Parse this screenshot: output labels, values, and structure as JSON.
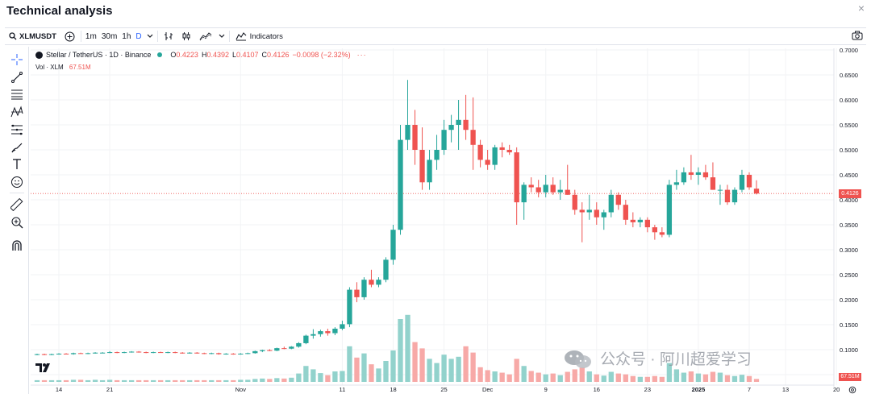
{
  "header": {
    "title": "Technical analysis",
    "close": "×"
  },
  "toolbar": {
    "symbol": "XLMUSDT",
    "intervals": [
      "1m",
      "30m",
      "1h",
      "D"
    ],
    "active_interval": "D",
    "indicators": "Indicators"
  },
  "legend": {
    "name": "Stellar / TetherUS · 1D · Binance",
    "o_label": "O",
    "o": "0.4223",
    "h_label": "H",
    "h": "0.4392",
    "l_label": "L",
    "l": "0.4107",
    "c_label": "C",
    "c": "0.4126",
    "change": "−0.0098 (−2.32%)",
    "vol_label": "Vol · XLM",
    "vol": "67.51M"
  },
  "last_price_tag": "0.4126",
  "last_volume_tag": "67.51M",
  "watermark": "公众号 · 阿川超爱学习",
  "colors": {
    "up": "#26a69a",
    "down": "#ef5350",
    "vol_up": "#92d2cc",
    "vol_down": "#f7a9a7",
    "accent": "#2962ff"
  },
  "icons": [
    "search-icon",
    "plus-circle-icon",
    "chevron-down-icon",
    "bar-style-icon",
    "candle-style-icon",
    "area-style-icon",
    "indicators-icon",
    "camera-icon",
    "crosshair-icon",
    "trendline-icon",
    "fib-icon",
    "pattern-icon",
    "projection-icon",
    "brush-icon",
    "text-icon",
    "emoji-icon",
    "ruler-icon",
    "zoom-icon",
    "magnet-icon"
  ],
  "chart_data": {
    "type": "candlestick",
    "y_ticks": [
      "0.7000",
      "0.6500",
      "0.6000",
      "0.5500",
      "0.5000",
      "0.4500",
      "0.4000",
      "0.3500",
      "0.3000",
      "0.2500",
      "0.2000",
      "0.1500",
      "0.1000",
      "0.0500"
    ],
    "x_ticks": [
      "14",
      "21",
      "Nov",
      "11",
      "18",
      "25",
      "Dec",
      "9",
      "16",
      "23",
      "2025",
      "7",
      "13",
      "20"
    ],
    "ylim": [
      0.05,
      0.7
    ],
    "candles": [
      {
        "o": 0.09,
        "h": 0.092,
        "l": 0.089,
        "c": 0.091,
        "v": 4
      },
      {
        "o": 0.091,
        "h": 0.092,
        "l": 0.089,
        "c": 0.09,
        "v": 4
      },
      {
        "o": 0.09,
        "h": 0.092,
        "l": 0.089,
        "c": 0.091,
        "v": 4
      },
      {
        "o": 0.091,
        "h": 0.093,
        "l": 0.09,
        "c": 0.092,
        "v": 4
      },
      {
        "o": 0.092,
        "h": 0.093,
        "l": 0.091,
        "c": 0.091,
        "v": 4
      },
      {
        "o": 0.091,
        "h": 0.094,
        "l": 0.09,
        "c": 0.093,
        "v": 5
      },
      {
        "o": 0.093,
        "h": 0.094,
        "l": 0.092,
        "c": 0.092,
        "v": 5
      },
      {
        "o": 0.092,
        "h": 0.094,
        "l": 0.091,
        "c": 0.093,
        "v": 4
      },
      {
        "o": 0.093,
        "h": 0.095,
        "l": 0.092,
        "c": 0.094,
        "v": 5
      },
      {
        "o": 0.094,
        "h": 0.095,
        "l": 0.093,
        "c": 0.094,
        "v": 4
      },
      {
        "o": 0.094,
        "h": 0.097,
        "l": 0.093,
        "c": 0.095,
        "v": 5
      },
      {
        "o": 0.095,
        "h": 0.096,
        "l": 0.093,
        "c": 0.094,
        "v": 4
      },
      {
        "o": 0.094,
        "h": 0.096,
        "l": 0.093,
        "c": 0.095,
        "v": 4
      },
      {
        "o": 0.095,
        "h": 0.097,
        "l": 0.094,
        "c": 0.096,
        "v": 4
      },
      {
        "o": 0.096,
        "h": 0.097,
        "l": 0.094,
        "c": 0.095,
        "v": 4
      },
      {
        "o": 0.095,
        "h": 0.096,
        "l": 0.093,
        "c": 0.094,
        "v": 4
      },
      {
        "o": 0.094,
        "h": 0.096,
        "l": 0.093,
        "c": 0.095,
        "v": 4
      },
      {
        "o": 0.095,
        "h": 0.096,
        "l": 0.094,
        "c": 0.094,
        "v": 4
      },
      {
        "o": 0.094,
        "h": 0.096,
        "l": 0.093,
        "c": 0.095,
        "v": 4
      },
      {
        "o": 0.095,
        "h": 0.096,
        "l": 0.093,
        "c": 0.094,
        "v": 4
      },
      {
        "o": 0.094,
        "h": 0.095,
        "l": 0.092,
        "c": 0.093,
        "v": 4
      },
      {
        "o": 0.093,
        "h": 0.095,
        "l": 0.092,
        "c": 0.094,
        "v": 4
      },
      {
        "o": 0.094,
        "h": 0.095,
        "l": 0.092,
        "c": 0.093,
        "v": 4
      },
      {
        "o": 0.093,
        "h": 0.094,
        "l": 0.091,
        "c": 0.092,
        "v": 4
      },
      {
        "o": 0.092,
        "h": 0.094,
        "l": 0.091,
        "c": 0.093,
        "v": 4
      },
      {
        "o": 0.093,
        "h": 0.094,
        "l": 0.09,
        "c": 0.091,
        "v": 4
      },
      {
        "o": 0.091,
        "h": 0.093,
        "l": 0.09,
        "c": 0.092,
        "v": 4
      },
      {
        "o": 0.092,
        "h": 0.093,
        "l": 0.09,
        "c": 0.091,
        "v": 4
      },
      {
        "o": 0.091,
        "h": 0.093,
        "l": 0.09,
        "c": 0.092,
        "v": 5
      },
      {
        "o": 0.092,
        "h": 0.094,
        "l": 0.091,
        "c": 0.093,
        "v": 5
      },
      {
        "o": 0.093,
        "h": 0.098,
        "l": 0.092,
        "c": 0.097,
        "v": 7
      },
      {
        "o": 0.097,
        "h": 0.1,
        "l": 0.095,
        "c": 0.099,
        "v": 8
      },
      {
        "o": 0.099,
        "h": 0.101,
        "l": 0.097,
        "c": 0.098,
        "v": 7
      },
      {
        "o": 0.098,
        "h": 0.104,
        "l": 0.097,
        "c": 0.103,
        "v": 9
      },
      {
        "o": 0.103,
        "h": 0.106,
        "l": 0.101,
        "c": 0.102,
        "v": 8
      },
      {
        "o": 0.102,
        "h": 0.107,
        "l": 0.101,
        "c": 0.106,
        "v": 10
      },
      {
        "o": 0.106,
        "h": 0.115,
        "l": 0.104,
        "c": 0.113,
        "v": 20
      },
      {
        "o": 0.113,
        "h": 0.13,
        "l": 0.111,
        "c": 0.128,
        "v": 38
      },
      {
        "o": 0.128,
        "h": 0.141,
        "l": 0.122,
        "c": 0.131,
        "v": 30
      },
      {
        "o": 0.131,
        "h": 0.14,
        "l": 0.126,
        "c": 0.137,
        "v": 21
      },
      {
        "o": 0.137,
        "h": 0.142,
        "l": 0.128,
        "c": 0.133,
        "v": 16
      },
      {
        "o": 0.133,
        "h": 0.145,
        "l": 0.129,
        "c": 0.142,
        "v": 25
      },
      {
        "o": 0.142,
        "h": 0.158,
        "l": 0.139,
        "c": 0.151,
        "v": 26
      },
      {
        "o": 0.151,
        "h": 0.225,
        "l": 0.145,
        "c": 0.22,
        "v": 85
      },
      {
        "o": 0.22,
        "h": 0.235,
        "l": 0.195,
        "c": 0.205,
        "v": 58
      },
      {
        "o": 0.205,
        "h": 0.245,
        "l": 0.2,
        "c": 0.24,
        "v": 68
      },
      {
        "o": 0.24,
        "h": 0.26,
        "l": 0.225,
        "c": 0.23,
        "v": 42
      },
      {
        "o": 0.23,
        "h": 0.245,
        "l": 0.225,
        "c": 0.24,
        "v": 32
      },
      {
        "o": 0.24,
        "h": 0.285,
        "l": 0.235,
        "c": 0.28,
        "v": 50
      },
      {
        "o": 0.28,
        "h": 0.35,
        "l": 0.27,
        "c": 0.34,
        "v": 75
      },
      {
        "o": 0.34,
        "h": 0.55,
        "l": 0.33,
        "c": 0.52,
        "v": 150
      },
      {
        "o": 0.52,
        "h": 0.64,
        "l": 0.5,
        "c": 0.55,
        "v": 160
      },
      {
        "o": 0.55,
        "h": 0.58,
        "l": 0.47,
        "c": 0.5,
        "v": 95
      },
      {
        "o": 0.5,
        "h": 0.545,
        "l": 0.42,
        "c": 0.435,
        "v": 80
      },
      {
        "o": 0.435,
        "h": 0.5,
        "l": 0.42,
        "c": 0.48,
        "v": 55
      },
      {
        "o": 0.48,
        "h": 0.53,
        "l": 0.46,
        "c": 0.5,
        "v": 45
      },
      {
        "o": 0.5,
        "h": 0.56,
        "l": 0.49,
        "c": 0.54,
        "v": 65
      },
      {
        "o": 0.54,
        "h": 0.57,
        "l": 0.515,
        "c": 0.55,
        "v": 55
      },
      {
        "o": 0.55,
        "h": 0.6,
        "l": 0.5,
        "c": 0.56,
        "v": 60
      },
      {
        "o": 0.56,
        "h": 0.61,
        "l": 0.52,
        "c": 0.54,
        "v": 85
      },
      {
        "o": 0.54,
        "h": 0.605,
        "l": 0.46,
        "c": 0.51,
        "v": 70
      },
      {
        "o": 0.51,
        "h": 0.52,
        "l": 0.465,
        "c": 0.48,
        "v": 35
      },
      {
        "o": 0.48,
        "h": 0.5,
        "l": 0.46,
        "c": 0.47,
        "v": 28
      },
      {
        "o": 0.47,
        "h": 0.51,
        "l": 0.46,
        "c": 0.505,
        "v": 25
      },
      {
        "o": 0.505,
        "h": 0.515,
        "l": 0.485,
        "c": 0.5,
        "v": 22
      },
      {
        "o": 0.5,
        "h": 0.51,
        "l": 0.49,
        "c": 0.495,
        "v": 18
      },
      {
        "o": 0.495,
        "h": 0.505,
        "l": 0.35,
        "c": 0.395,
        "v": 55
      },
      {
        "o": 0.395,
        "h": 0.435,
        "l": 0.36,
        "c": 0.43,
        "v": 38
      },
      {
        "o": 0.43,
        "h": 0.445,
        "l": 0.415,
        "c": 0.425,
        "v": 26
      },
      {
        "o": 0.425,
        "h": 0.44,
        "l": 0.405,
        "c": 0.415,
        "v": 22
      },
      {
        "o": 0.415,
        "h": 0.45,
        "l": 0.405,
        "c": 0.43,
        "v": 18
      },
      {
        "o": 0.43,
        "h": 0.445,
        "l": 0.41,
        "c": 0.415,
        "v": 20
      },
      {
        "o": 0.415,
        "h": 0.44,
        "l": 0.4,
        "c": 0.42,
        "v": 16
      },
      {
        "o": 0.42,
        "h": 0.47,
        "l": 0.41,
        "c": 0.41,
        "v": 24
      },
      {
        "o": 0.41,
        "h": 0.42,
        "l": 0.37,
        "c": 0.38,
        "v": 30
      },
      {
        "o": 0.38,
        "h": 0.395,
        "l": 0.315,
        "c": 0.375,
        "v": 34
      },
      {
        "o": 0.375,
        "h": 0.41,
        "l": 0.36,
        "c": 0.38,
        "v": 25
      },
      {
        "o": 0.38,
        "h": 0.395,
        "l": 0.35,
        "c": 0.365,
        "v": 18
      },
      {
        "o": 0.365,
        "h": 0.38,
        "l": 0.34,
        "c": 0.375,
        "v": 15
      },
      {
        "o": 0.375,
        "h": 0.42,
        "l": 0.365,
        "c": 0.41,
        "v": 24
      },
      {
        "o": 0.41,
        "h": 0.415,
        "l": 0.38,
        "c": 0.39,
        "v": 20
      },
      {
        "o": 0.39,
        "h": 0.4,
        "l": 0.35,
        "c": 0.36,
        "v": 18
      },
      {
        "o": 0.36,
        "h": 0.375,
        "l": 0.345,
        "c": 0.355,
        "v": 14
      },
      {
        "o": 0.355,
        "h": 0.365,
        "l": 0.345,
        "c": 0.36,
        "v": 12
      },
      {
        "o": 0.36,
        "h": 0.365,
        "l": 0.335,
        "c": 0.345,
        "v": 12
      },
      {
        "o": 0.345,
        "h": 0.35,
        "l": 0.32,
        "c": 0.335,
        "v": 14
      },
      {
        "o": 0.335,
        "h": 0.345,
        "l": 0.325,
        "c": 0.33,
        "v": 12
      },
      {
        "o": 0.33,
        "h": 0.44,
        "l": 0.325,
        "c": 0.43,
        "v": 45
      },
      {
        "o": 0.43,
        "h": 0.46,
        "l": 0.42,
        "c": 0.435,
        "v": 30
      },
      {
        "o": 0.435,
        "h": 0.465,
        "l": 0.43,
        "c": 0.455,
        "v": 22
      },
      {
        "o": 0.455,
        "h": 0.49,
        "l": 0.44,
        "c": 0.45,
        "v": 25
      },
      {
        "o": 0.45,
        "h": 0.465,
        "l": 0.43,
        "c": 0.455,
        "v": 20
      },
      {
        "o": 0.455,
        "h": 0.47,
        "l": 0.44,
        "c": 0.445,
        "v": 18
      },
      {
        "o": 0.445,
        "h": 0.475,
        "l": 0.42,
        "c": 0.42,
        "v": 24
      },
      {
        "o": 0.42,
        "h": 0.43,
        "l": 0.39,
        "c": 0.42,
        "v": 22
      },
      {
        "o": 0.42,
        "h": 0.43,
        "l": 0.39,
        "c": 0.395,
        "v": 16
      },
      {
        "o": 0.395,
        "h": 0.425,
        "l": 0.39,
        "c": 0.42,
        "v": 14
      },
      {
        "o": 0.42,
        "h": 0.46,
        "l": 0.415,
        "c": 0.45,
        "v": 17
      },
      {
        "o": 0.45,
        "h": 0.455,
        "l": 0.42,
        "c": 0.425,
        "v": 14
      },
      {
        "o": 0.4223,
        "h": 0.4392,
        "l": 0.4107,
        "c": 0.4126,
        "v": 7
      }
    ],
    "vol_max": 200,
    "last_price": 0.4126
  }
}
